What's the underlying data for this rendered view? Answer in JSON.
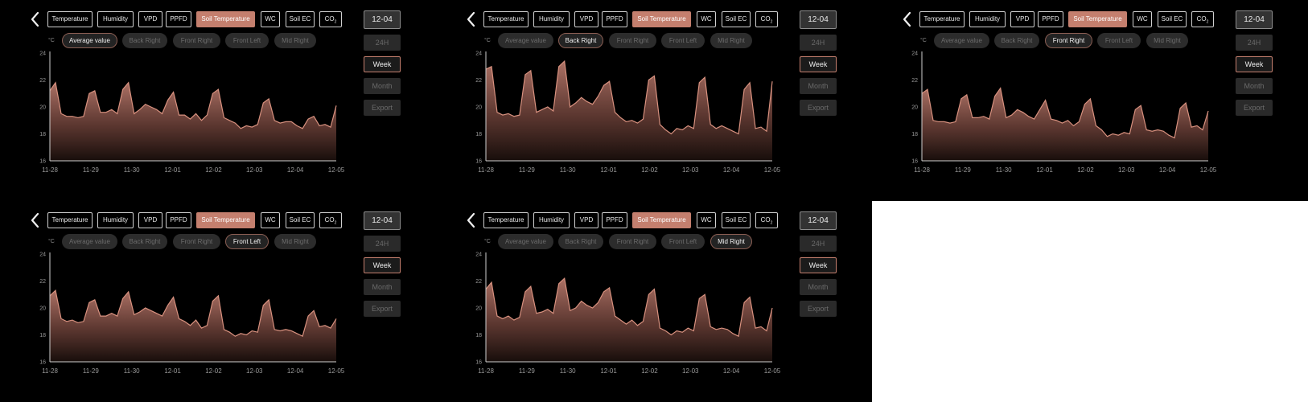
{
  "date_label": "12-04",
  "metric_tabs": [
    "Temperature",
    "Humidity",
    "VPD",
    "PPFD",
    "Soil Temperature",
    "WC",
    "Soil EC",
    "CO"
  ],
  "co2_subscript": "2",
  "active_metric": "Soil Temperature",
  "series_chips": [
    "Average value",
    "Back Right",
    "Front Right",
    "Front Left",
    "Mid Right"
  ],
  "unit_label": "°C",
  "range_buttons": [
    "24H",
    "Week",
    "Month"
  ],
  "active_range": "Week",
  "export_label": "Export",
  "colors": {
    "accent": "#c47f6e",
    "line": "#d8917f",
    "background": "#000000"
  },
  "chart_data": [
    {
      "type": "area",
      "series_name": "Average value",
      "x_labels": [
        "11-28",
        "11-29",
        "11-30",
        "12-01",
        "12-02",
        "12-03",
        "12-04",
        "12-05"
      ],
      "ylim": [
        16,
        24
      ],
      "y_ticks": [
        16,
        18,
        20,
        22,
        24
      ],
      "values": [
        21.2,
        21.8,
        19.5,
        19.3,
        19.3,
        19.2,
        19.3,
        21.0,
        21.2,
        19.6,
        19.6,
        19.8,
        19.5,
        21.3,
        21.8,
        19.5,
        19.8,
        20.2,
        20.0,
        19.8,
        19.5,
        20.5,
        21.1,
        19.4,
        19.4,
        19.1,
        19.5,
        19.0,
        19.4,
        21.0,
        21.3,
        19.2,
        19.0,
        18.8,
        18.4,
        18.6,
        18.5,
        18.7,
        20.3,
        20.6,
        19.0,
        18.8,
        18.9,
        18.9,
        18.6,
        18.4,
        19.1,
        19.3,
        18.6,
        18.7,
        18.5,
        20.1
      ]
    },
    {
      "type": "area",
      "series_name": "Back Right",
      "x_labels": [
        "11-28",
        "11-29",
        "11-30",
        "12-01",
        "12-02",
        "12-03",
        "12-04",
        "12-05"
      ],
      "ylim": [
        16,
        24
      ],
      "y_ticks": [
        16,
        18,
        20,
        22,
        24
      ],
      "values": [
        22.8,
        23.0,
        19.6,
        19.4,
        19.5,
        19.3,
        19.4,
        22.4,
        22.7,
        19.6,
        19.8,
        20.0,
        19.7,
        23.0,
        23.4,
        20.0,
        20.3,
        20.7,
        20.4,
        20.2,
        20.8,
        21.6,
        21.9,
        19.6,
        19.2,
        18.9,
        19.0,
        18.8,
        19.1,
        22.0,
        22.3,
        18.7,
        18.3,
        18.0,
        18.4,
        18.3,
        18.6,
        18.4,
        21.8,
        22.2,
        18.7,
        18.4,
        18.6,
        18.4,
        18.2,
        18.0,
        21.3,
        21.8,
        18.4,
        18.5,
        18.2,
        21.9
      ]
    },
    {
      "type": "area",
      "series_name": "Front Right",
      "x_labels": [
        "11-28",
        "11-29",
        "11-30",
        "12-01",
        "12-02",
        "12-03",
        "12-04",
        "12-05"
      ],
      "ylim": [
        16,
        24
      ],
      "y_ticks": [
        16,
        18,
        20,
        22,
        24
      ],
      "values": [
        21.0,
        21.3,
        19.0,
        18.9,
        18.9,
        18.8,
        18.9,
        20.6,
        20.9,
        19.2,
        19.2,
        19.3,
        19.1,
        20.8,
        21.4,
        19.2,
        19.4,
        19.8,
        19.6,
        19.3,
        19.1,
        19.8,
        20.5,
        19.1,
        19.0,
        18.8,
        19.0,
        18.6,
        18.9,
        20.2,
        20.6,
        18.6,
        18.3,
        17.8,
        18.0,
        17.9,
        18.1,
        18.0,
        19.8,
        20.1,
        18.3,
        18.2,
        18.3,
        18.2,
        17.9,
        17.7,
        19.9,
        20.3,
        18.5,
        18.6,
        18.3,
        19.7
      ]
    },
    {
      "type": "area",
      "series_name": "Front Left",
      "x_labels": [
        "11-28",
        "11-29",
        "11-30",
        "12-01",
        "12-02",
        "12-03",
        "12-04",
        "12-05"
      ],
      "ylim": [
        16,
        24
      ],
      "y_ticks": [
        16,
        18,
        20,
        22,
        24
      ],
      "values": [
        20.9,
        21.3,
        19.2,
        19.0,
        19.1,
        18.9,
        19.0,
        20.4,
        20.6,
        19.4,
        19.4,
        19.6,
        19.4,
        20.7,
        21.2,
        19.5,
        19.7,
        20.0,
        19.8,
        19.6,
        19.4,
        20.2,
        20.8,
        19.2,
        19.0,
        18.7,
        19.1,
        18.5,
        18.7,
        20.5,
        20.9,
        18.4,
        18.2,
        17.9,
        18.1,
        18.0,
        18.3,
        18.2,
        20.2,
        20.6,
        18.4,
        18.3,
        18.4,
        18.3,
        18.1,
        17.9,
        19.4,
        19.8,
        18.6,
        18.7,
        18.5,
        19.2
      ]
    },
    {
      "type": "area",
      "series_name": "Mid Right",
      "x_labels": [
        "11-28",
        "11-29",
        "11-30",
        "12-01",
        "12-02",
        "12-03",
        "12-04",
        "12-05"
      ],
      "ylim": [
        16,
        24
      ],
      "y_ticks": [
        16,
        18,
        20,
        22,
        24
      ],
      "values": [
        21.4,
        21.9,
        19.4,
        19.2,
        19.4,
        19.1,
        19.3,
        21.2,
        21.6,
        19.6,
        19.7,
        19.9,
        19.6,
        21.8,
        22.2,
        19.8,
        20.0,
        20.5,
        20.2,
        20.0,
        20.4,
        21.2,
        21.5,
        19.4,
        19.1,
        18.8,
        19.1,
        18.7,
        19.0,
        21.0,
        21.4,
        18.5,
        18.3,
        18.0,
        18.3,
        18.2,
        18.5,
        18.3,
        20.7,
        21.0,
        18.6,
        18.4,
        18.5,
        18.4,
        18.1,
        17.9,
        20.4,
        20.8,
        18.5,
        18.6,
        18.3,
        20.0
      ]
    }
  ]
}
